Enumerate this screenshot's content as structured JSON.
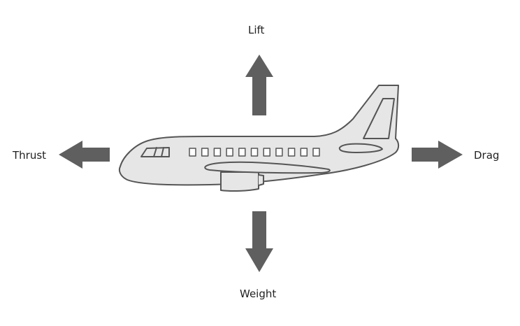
{
  "forces": {
    "lift": {
      "label": "Lift"
    },
    "thrust": {
      "label": "Thrust"
    },
    "drag": {
      "label": "Drag"
    },
    "weight": {
      "label": "Weight"
    }
  },
  "colors": {
    "arrow": "#5f5f5f",
    "airplane_fill": "#e6e6e6",
    "airplane_stroke": "#555555",
    "text": "#222222",
    "background": "#ffffff"
  },
  "icons": {
    "vehicle": "airplane-icon",
    "lift": "arrow-up-icon",
    "thrust": "arrow-left-icon",
    "drag": "arrow-right-icon",
    "weight": "arrow-down-icon"
  }
}
